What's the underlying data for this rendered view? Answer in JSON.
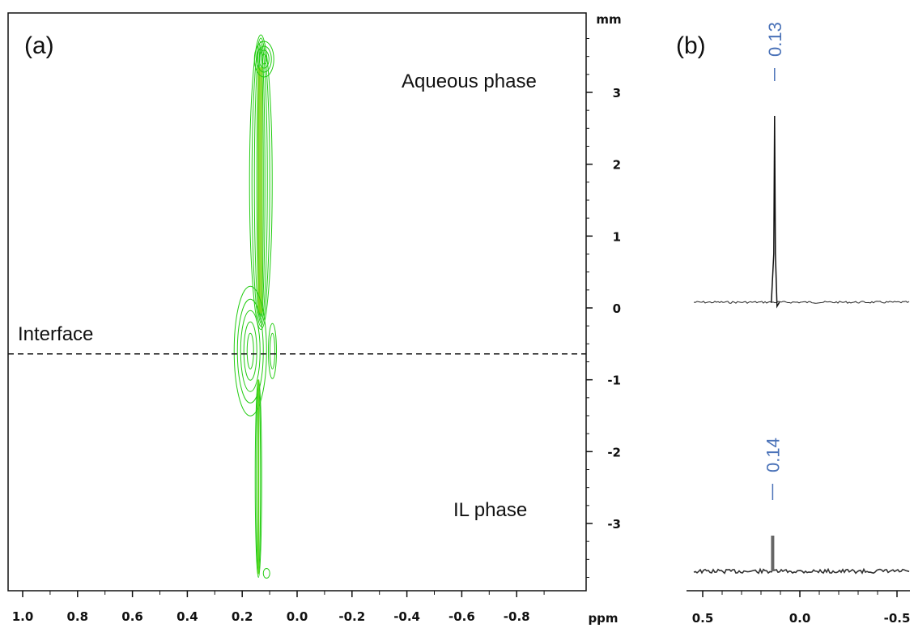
{
  "chart_data": [
    {
      "type": "contour",
      "panel_label": "(a)",
      "xlabel": "ppm",
      "ylabel": "mm",
      "xlim": [
        1.0,
        -1.0
      ],
      "ylim": [
        -3.9,
        4.0
      ],
      "x_ticks": [
        "1.0",
        "0.8",
        "0.6",
        "0.4",
        "0.2",
        "0.0",
        "-0.2",
        "-0.4",
        "-0.6",
        "-0.8"
      ],
      "x_tick_values": [
        1.0,
        0.8,
        0.6,
        0.4,
        0.2,
        0.0,
        -0.2,
        -0.4,
        -0.6,
        -0.8
      ],
      "y_ticks": [
        "3",
        "2",
        "1",
        "0",
        "-1",
        "-2",
        "-3"
      ],
      "y_tick_values": [
        3,
        2,
        1,
        0,
        -1,
        -2,
        -3
      ],
      "annotations": [
        {
          "text": "Aqueous phase",
          "x": -0.37,
          "y": 3.2
        },
        {
          "text": "Interface",
          "x": 0.85,
          "y": -0.38
        },
        {
          "text": "IL phase",
          "x": -0.35,
          "y": -2.95
        }
      ],
      "interface_y": -0.64,
      "contour_color": "#22cc11",
      "signal": {
        "x_center": 0.135,
        "y_range": [
          -3.75,
          3.8
        ]
      }
    },
    {
      "type": "line",
      "panel_label": "(b)",
      "xlim": [
        0.6,
        -0.6
      ],
      "x_ticks": [
        "0.5",
        "0.0",
        "-0.5"
      ],
      "x_tick_values": [
        0.5,
        0.0,
        -0.5
      ],
      "series": [
        {
          "peak_label": "0.13",
          "peak_x": 0.13,
          "peak_height": 1.0
        },
        {
          "peak_label": "0.14",
          "peak_x": 0.14,
          "peak_height": 0.15
        }
      ],
      "label_color": "#4a72b8"
    }
  ]
}
